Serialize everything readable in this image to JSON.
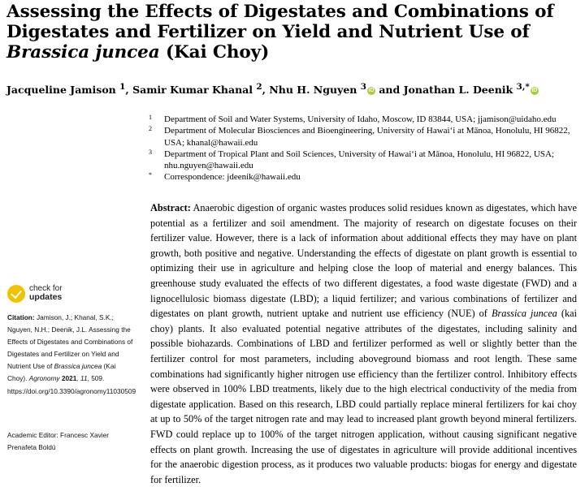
{
  "title": {
    "line1": "Assessing the Effects of Digestates and Combinations of",
    "line2": "Digestates and Fertilizer on Yield and Nutrient Use of",
    "species": "Brassica juncea",
    "common_name": " (Kai Choy)"
  },
  "authors": {
    "a1": "Jacqueline Jamison ",
    "a1_sup": "1",
    "a2": ", Samir Kumar Khanal ",
    "a2_sup": "2",
    "a3": ", Nhu H. Nguyen ",
    "a3_sup": "3",
    "a4": " and Jonathan L. Deenik ",
    "a4_sup": "3,*",
    "orcid_icon": "orcid-icon"
  },
  "affiliations": [
    {
      "num": "1",
      "text": "Department of Soil and Water Systems, University of Idaho, Moscow, ID 83844, USA; jjamison@uidaho.edu"
    },
    {
      "num": "2",
      "text": "Department of Molecular Biosciences and Bioengineering, University of Hawai‘i at Mānoa, Honolulu, HI 96822, USA; khanal@hawaii.edu"
    },
    {
      "num": "3",
      "text": "Department of Tropical Plant and Soil Sciences, University of Hawai‘i at Mānoa, Honolulu, HI 96822, USA; nhu.nguyen@hawaii.edu"
    },
    {
      "num": "*",
      "text": "Correspondence: jdeenik@hawaii.edu"
    }
  ],
  "abstract": {
    "label": "Abstract:",
    "part1": " Anaerobic digestion of organic wastes produces solid residues known as digestates, which have potential as a fertilizer and soil amendment. The majority of research on digestate focuses on their fertilizer value. However, there is a lack of information about additional effects they may have on plant growth, both positive and negative. Understanding the effects of digestate on plant growth is essential to optimizing their use in agriculture and helping close the loop of material and energy balances. This greenhouse study evaluated the effects of two different digestates, a food waste digestate (FWD) and a lignocellulosic biomass digestate (LBD); a liquid fertilizer; and various combinations of fertilizer and digestates on plant growth, nutrient uptake and nutrient use efficiency (NUE) of ",
    "species": "Brassica juncea",
    "part2": " (kai choy) plants. It also evaluated potential negative attributes of the digestates, including salinity and possible biohazards. Combinations of LBD and fertilizer performed as well or slightly better than the fertilizer control for most parameters, including aboveground biomass and root length. These same combinations had significantly higher nitrogen use efficiency than the fertilizer control. Inhibitory effects were observed in 100% LBD treatments, likely due to the high electrical conductivity of the media from digestate application. Based on this research, LBD could partially replace mineral fertilizers for kai choy at up to 50% of the target nitrogen rate and may lead to increased plant growth beyond mineral fertilizers. FWD could replace up to 100% of the target nitrogen application, without causing significant negative effects on plant growth. Increasing the use of digestates in agriculture will provide additional incentives for the anaerobic digestion process, as it produces two valuable products: biogas for energy and digestate for fertilizer."
  },
  "check_updates": {
    "line1": "check for",
    "line2": "updates",
    "icon": "check-badge-icon"
  },
  "citation": {
    "label": "Citation:",
    "text1": " Jamison, J.; Khanal, S.K.; Nguyen, N.H.; Deenik, J.L. Assessing the Effects of Digestates and Combinations of Digestates and Fertilizer on Yield and Nutrient Use of ",
    "species": "Brassica juncea",
    "text2": " (Kai Choy). ",
    "journal": "Agronomy",
    "year": " 2021",
    "volume": ", 11",
    "text3": ", 509. https://doi.org/10.3390/agronomy11030509"
  },
  "editor": {
    "label": "Academic Editor: Francesc Xavier Prenafeta Boldú"
  }
}
